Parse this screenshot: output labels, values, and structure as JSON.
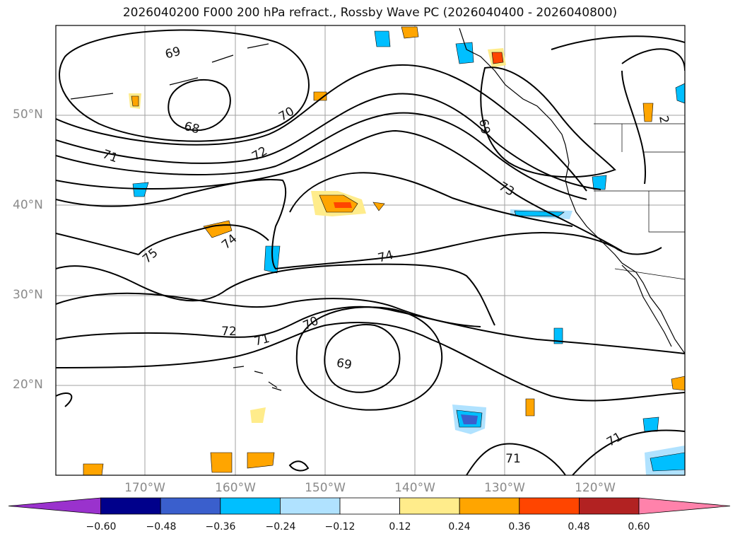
{
  "title": "2026040200 F000 200 hPa refract., Rossby Wave PC (2026040400 - 2026040800)",
  "map": {
    "lat_labels": [
      {
        "label": "50°N",
        "lat": 50
      },
      {
        "label": "40°N",
        "lat": 40
      },
      {
        "label": "30°N",
        "lat": 30
      },
      {
        "label": "20°N",
        "lat": 20
      }
    ],
    "lon_labels": [
      {
        "label": "170°W",
        "lon": -170
      },
      {
        "label": "160°W",
        "lon": -160
      },
      {
        "label": "150°W",
        "lon": -150
      },
      {
        "label": "140°W",
        "lon": -140
      },
      {
        "label": "130°W",
        "lon": -130
      },
      {
        "label": "120°W",
        "lon": -120
      }
    ],
    "contour_labels": [
      "69",
      "68",
      "70",
      "71",
      "72",
      "69",
      "73",
      "75",
      "74",
      "74",
      "72",
      "71",
      "70",
      "69",
      "71",
      "71",
      "2"
    ],
    "colors": {
      "coast": "#000000",
      "grid": "#a0a0a0"
    }
  },
  "colorbar": {
    "ticks": [
      "−0.60",
      "−0.48",
      "−0.36",
      "−0.24",
      "−0.12",
      "0.12",
      "0.24",
      "0.36",
      "0.48",
      "0.60"
    ],
    "colors": [
      "#9a32cd",
      "#00008b",
      "#3a5fcd",
      "#00bfff",
      "#b0e2ff",
      "#ffffff",
      "#ffec8b",
      "#ffa500",
      "#ff4500",
      "#b22222",
      "#ff82ab"
    ]
  }
}
